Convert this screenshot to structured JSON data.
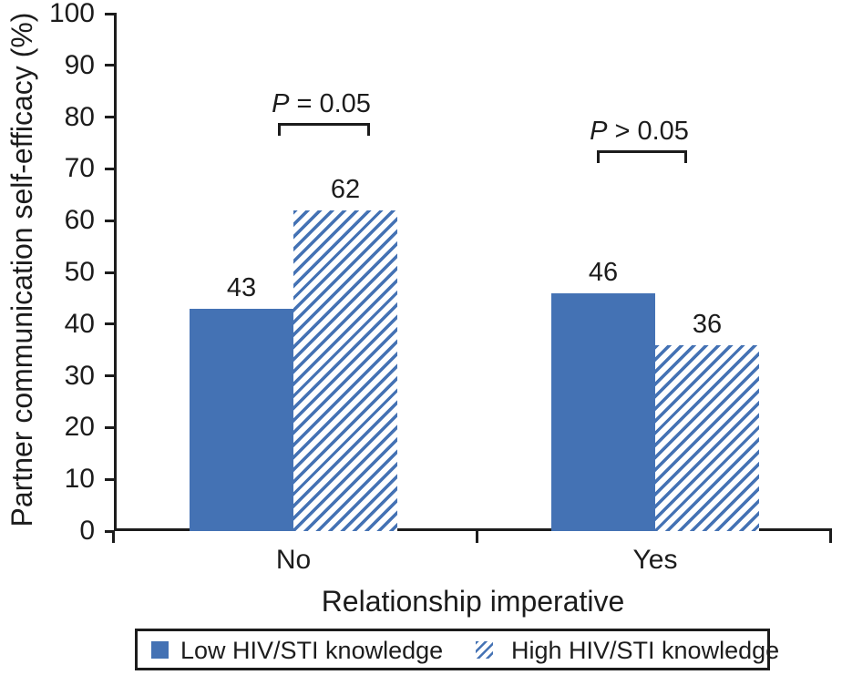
{
  "chart_data": {
    "type": "bar",
    "title": "",
    "xlabel": "Relationship imperative",
    "ylabel": "Partner communication self-efficacy (%)",
    "categories": [
      "No",
      "Yes"
    ],
    "series": [
      {
        "name": "Low HIV/STI knowledge",
        "pattern": "solid",
        "values": [
          43,
          46
        ]
      },
      {
        "name": "High HIV/STI knowledge",
        "pattern": "hatched",
        "values": [
          62,
          36
        ]
      }
    ],
    "ylim": [
      0,
      100
    ],
    "ytick_step": 10,
    "yticks": [
      0,
      10,
      20,
      30,
      40,
      50,
      60,
      70,
      80,
      90,
      100
    ],
    "grid": false,
    "legend_position": "bottom",
    "bar_color": "#4472B4",
    "axis_color": "#1c1c1c",
    "annotations": [
      {
        "category": "No",
        "symbol": "P",
        "relation": "=",
        "value": "0.05",
        "text": "P = 0.05"
      },
      {
        "category": "Yes",
        "symbol": "P",
        "relation": ">",
        "value": "0.05",
        "text": "P > 0.05"
      }
    ]
  }
}
